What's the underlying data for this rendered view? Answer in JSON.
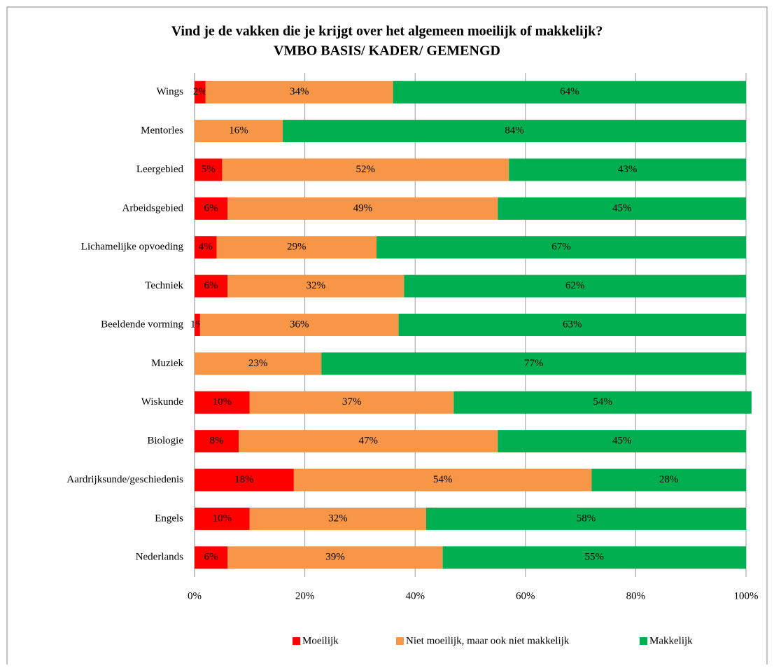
{
  "chart_data": {
    "type": "stacked_bar_horizontal",
    "title": "Vind je de vakken die je krijgt over het algemeen moeilijk of makkelijk?",
    "subtitle": "VMBO BASIS/ KADER/ GEMENGD",
    "categories": [
      "Wings",
      "Mentorles",
      "Leergebied",
      "Arbeidsgebied",
      "Lichamelijke opvoeding",
      "Techniek",
      "Beeldende vorming",
      "Muziek",
      "Wiskunde",
      "Biologie",
      "Aardrijksunde/geschiedenis",
      "Engels",
      "Nederlands"
    ],
    "series": [
      {
        "name": "Moeilijk",
        "color": "#ff0000",
        "values": [
          2,
          null,
          5,
          6,
          4,
          6,
          1,
          null,
          10,
          8,
          18,
          10,
          6
        ],
        "value_labels": [
          "2%",
          null,
          "5%",
          "6%",
          "4%",
          "6%",
          "1%",
          null,
          "10%",
          "8%",
          "18%",
          "10%",
          "6%"
        ]
      },
      {
        "name": "Niet moeilijk, maar ook niet makkelijk",
        "color": "#f79646",
        "values": [
          34,
          16,
          52,
          49,
          29,
          32,
          36,
          23,
          37,
          47,
          54,
          32,
          39
        ],
        "value_labels": [
          "34%",
          "16%",
          "52%",
          "49%",
          "29%",
          "32%",
          "36%",
          "23%",
          "37%",
          "47%",
          "54%",
          "32%",
          "39%"
        ]
      },
      {
        "name": "Makkelijk",
        "color": "#00b050",
        "values": [
          64,
          84,
          43,
          45,
          67,
          62,
          63,
          77,
          54,
          45,
          28,
          58,
          55
        ],
        "value_labels": [
          "64%",
          "84%",
          "43%",
          "45%",
          "67%",
          "62%",
          "63%",
          "77%",
          "54%",
          "45%",
          "28%",
          "58%",
          "55%"
        ]
      }
    ],
    "xlim": [
      0,
      100
    ],
    "xticks": [
      {
        "value": 0,
        "label": "0%"
      },
      {
        "value": 20,
        "label": "20%"
      },
      {
        "value": 40,
        "label": "40%"
      },
      {
        "value": 60,
        "label": "60%"
      },
      {
        "value": 80,
        "label": "80%"
      },
      {
        "value": 100,
        "label": "100%"
      }
    ],
    "grid": true,
    "legend": "bottom"
  }
}
